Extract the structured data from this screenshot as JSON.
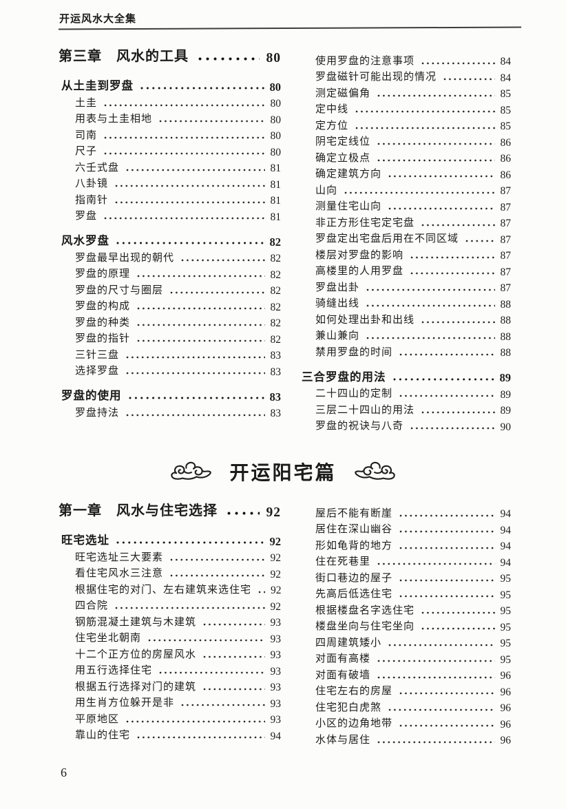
{
  "header": {
    "title": "开运风水大全集"
  },
  "part_divider": {
    "title": "开运阳宅篇"
  },
  "footer": {
    "page_number": "6"
  },
  "toc": {
    "part1_left": [
      {
        "type": "chapter",
        "label": "第三章　风水的工具",
        "page": "80"
      },
      {
        "type": "section",
        "label": "从土圭到罗盘",
        "page": "80"
      },
      {
        "type": "item",
        "label": "土圭",
        "page": "80"
      },
      {
        "type": "item",
        "label": "用表与土圭相地",
        "page": "80"
      },
      {
        "type": "item",
        "label": "司南",
        "page": "80"
      },
      {
        "type": "item",
        "label": "尺子",
        "page": "80"
      },
      {
        "type": "item",
        "label": "六壬式盘",
        "page": "81"
      },
      {
        "type": "item",
        "label": "八卦镜",
        "page": "81"
      },
      {
        "type": "item",
        "label": "指南针",
        "page": "81"
      },
      {
        "type": "item",
        "label": "罗盘",
        "page": "81"
      },
      {
        "type": "section",
        "label": "风水罗盘",
        "page": "82"
      },
      {
        "type": "item",
        "label": "罗盘最早出现的朝代",
        "page": "82"
      },
      {
        "type": "item",
        "label": "罗盘的原理",
        "page": "82"
      },
      {
        "type": "item",
        "label": "罗盘的尺寸与圈层",
        "page": "82"
      },
      {
        "type": "item",
        "label": "罗盘的构成",
        "page": "82"
      },
      {
        "type": "item",
        "label": "罗盘的种类",
        "page": "82"
      },
      {
        "type": "item",
        "label": "罗盘的指针",
        "page": "82"
      },
      {
        "type": "item",
        "label": "三针三盘",
        "page": "83"
      },
      {
        "type": "item",
        "label": "选择罗盘",
        "page": "83"
      },
      {
        "type": "section",
        "label": "罗盘的使用",
        "page": "83"
      },
      {
        "type": "item",
        "label": "罗盘持法",
        "page": "83"
      }
    ],
    "part1_right": [
      {
        "type": "item",
        "label": "使用罗盘的注意事项",
        "page": "84"
      },
      {
        "type": "item",
        "label": "罗盘磁针可能出现的情况",
        "page": "84"
      },
      {
        "type": "item",
        "label": "测定磁偏角",
        "page": "85"
      },
      {
        "type": "item",
        "label": "定中线",
        "page": "85"
      },
      {
        "type": "item",
        "label": "定方位",
        "page": "85"
      },
      {
        "type": "item",
        "label": "阴宅定线位",
        "page": "86"
      },
      {
        "type": "item",
        "label": "确定立极点",
        "page": "86"
      },
      {
        "type": "item",
        "label": "确定建筑方向",
        "page": "86"
      },
      {
        "type": "item",
        "label": "山向",
        "page": "87"
      },
      {
        "type": "item",
        "label": "测量住宅山向",
        "page": "87"
      },
      {
        "type": "item",
        "label": "非正方形住宅定宅盘",
        "page": "87"
      },
      {
        "type": "item",
        "label": "罗盘定出宅盘后用在不同区域",
        "page": "87"
      },
      {
        "type": "item",
        "label": "楼层对罗盘的影响",
        "page": "87"
      },
      {
        "type": "item",
        "label": "高楼里的人用罗盘",
        "page": "87"
      },
      {
        "type": "item",
        "label": "罗盘出卦",
        "page": "87"
      },
      {
        "type": "item",
        "label": "骑缝出线",
        "page": "88"
      },
      {
        "type": "item",
        "label": "如何处理出卦和出线",
        "page": "88"
      },
      {
        "type": "item",
        "label": "兼山兼向",
        "page": "88"
      },
      {
        "type": "item",
        "label": "禁用罗盘的时间",
        "page": "88"
      },
      {
        "type": "section",
        "label": "三合罗盘的用法",
        "page": "89"
      },
      {
        "type": "item",
        "label": "二十四山的定制",
        "page": "89"
      },
      {
        "type": "item",
        "label": "三层二十四山的用法",
        "page": "89"
      },
      {
        "type": "item",
        "label": "罗盘的祝诀与八奇",
        "page": "90"
      }
    ],
    "part2_left": [
      {
        "type": "chapter",
        "label": "第一章　风水与住宅选择",
        "page": "92"
      },
      {
        "type": "section",
        "label": "旺宅选址",
        "page": "92"
      },
      {
        "type": "item",
        "label": "旺宅选址三大要素",
        "page": "92"
      },
      {
        "type": "item",
        "label": "看住宅风水三注意",
        "page": "92"
      },
      {
        "type": "item",
        "label": "根据住宅的对门、左右建筑来选住宅",
        "page": "92"
      },
      {
        "type": "item",
        "label": "四合院",
        "page": "92"
      },
      {
        "type": "item",
        "label": "钢筋混凝土建筑与木建筑",
        "page": "93"
      },
      {
        "type": "item",
        "label": "住宅坐北朝南",
        "page": "93"
      },
      {
        "type": "item",
        "label": "十二个正方位的房屋风水",
        "page": "93"
      },
      {
        "type": "item",
        "label": "用五行选择住宅",
        "page": "93"
      },
      {
        "type": "item",
        "label": "根据五行选择对门的建筑",
        "page": "93"
      },
      {
        "type": "item",
        "label": "用生肖方位躲开是非",
        "page": "93"
      },
      {
        "type": "item",
        "label": "平原地区",
        "page": "93"
      },
      {
        "type": "item",
        "label": "靠山的住宅",
        "page": "94"
      }
    ],
    "part2_right": [
      {
        "type": "item",
        "label": "屋后不能有断崖",
        "page": "94"
      },
      {
        "type": "item",
        "label": "居住在深山幽谷",
        "page": "94"
      },
      {
        "type": "item",
        "label": "形如龟背的地方",
        "page": "94"
      },
      {
        "type": "item",
        "label": "住在死巷里",
        "page": "94"
      },
      {
        "type": "item",
        "label": "街口巷边的屋子",
        "page": "95"
      },
      {
        "type": "item",
        "label": "先高后低选住宅",
        "page": "95"
      },
      {
        "type": "item",
        "label": "根据楼盘名字选住宅",
        "page": "95"
      },
      {
        "type": "item",
        "label": "楼盘坐向与住宅坐向",
        "page": "95"
      },
      {
        "type": "item",
        "label": "四周建筑矮小",
        "page": "95"
      },
      {
        "type": "item",
        "label": "对面有高楼",
        "page": "95"
      },
      {
        "type": "item",
        "label": "对面有破墙",
        "page": "96"
      },
      {
        "type": "item",
        "label": "住宅左右的房屋",
        "page": "96"
      },
      {
        "type": "item",
        "label": "住宅犯白虎煞",
        "page": "96"
      },
      {
        "type": "item",
        "label": "小区的边角地带",
        "page": "96"
      },
      {
        "type": "item",
        "label": "水体与居住",
        "page": "96"
      }
    ]
  }
}
